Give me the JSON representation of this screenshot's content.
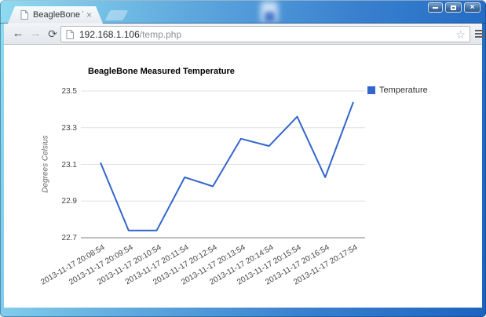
{
  "browser": {
    "tab": {
      "title": "BeagleBone Temperature"
    },
    "toolbar": {
      "url_host": "192.168.1.106",
      "url_path": "/temp.php"
    },
    "icons": {
      "back": "←",
      "forward": "→",
      "reload": "⟳",
      "bookmark_star": "☆",
      "tab_close": "×",
      "window_close": "×",
      "menu": "hamburger-bars",
      "window_minimize": "minimize-bar",
      "window_maximize": "maximize-square",
      "page_favicon": "blank-page"
    }
  },
  "chart_data": {
    "type": "line",
    "title": "BeagleBone Measured Temperature",
    "xlabel": "",
    "ylabel": "Degrees Celsius",
    "categories": [
      "2013-11-17 20:08:54",
      "2013-11-17 20:09:54",
      "2013-11-17 20:10:54",
      "2013-11-17 20:11:54",
      "2013-11-17 20:12:54",
      "2013-11-17 20:13:54",
      "2013-11-17 20:14:54",
      "2013-11-17 20:15:54",
      "2013-11-17 20:16:54",
      "2013-11-17 20:17:54"
    ],
    "series": [
      {
        "name": "Temperature",
        "color": "#3366cc",
        "values": [
          23.11,
          22.74,
          22.74,
          23.03,
          22.98,
          23.24,
          23.2,
          23.36,
          23.03,
          23.44
        ]
      }
    ],
    "ylim": [
      22.7,
      23.5
    ],
    "yticks": [
      22.7,
      22.9,
      23.1,
      23.3,
      23.5
    ],
    "grid": true,
    "legend_position": "right",
    "colors": {
      "gridline": "#e0e0e0",
      "baseline": "#808080",
      "tick_text": "#444444"
    }
  }
}
